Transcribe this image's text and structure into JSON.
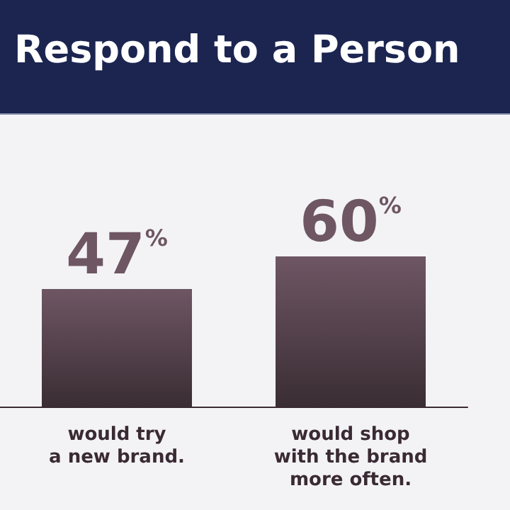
{
  "chart_data": {
    "type": "bar",
    "title": "Respond to a Person",
    "categories": [
      "would try\na new brand.",
      "would shop\nwith the brand\nmore often."
    ],
    "values": [
      47,
      60
    ],
    "value_labels": [
      "47%",
      "60%"
    ],
    "color": "#6e5663",
    "tick_labels": "x"
  }
}
